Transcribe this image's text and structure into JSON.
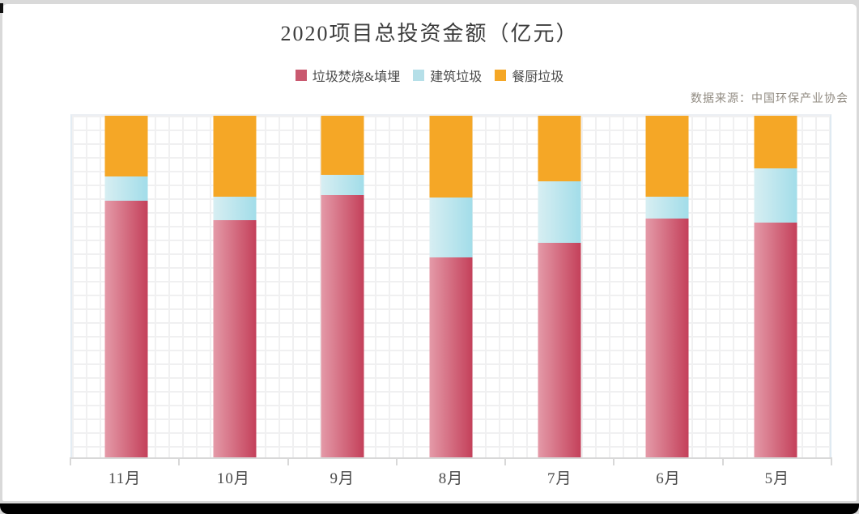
{
  "frame": {
    "border_color": "#d9d9d9",
    "bottom_bar_color": "#000000"
  },
  "chart_data": {
    "type": "bar",
    "stacked": true,
    "title": "2020项目总投资金额（亿元）",
    "source_note": "数据来源：中国环保产业协会",
    "xlabel": "",
    "ylabel": "",
    "y_axis_visible": false,
    "grid": "fine background grid, on",
    "legend_position": "top-center",
    "value_unit": "percent_of_column_height",
    "categories": [
      "11月",
      "10月",
      "9月",
      "8月",
      "7月",
      "6月",
      "5月"
    ],
    "series": [
      {
        "name": "垃圾焚烧&填埋",
        "legend_color": "#c9596f",
        "color_start": "#e49aa8",
        "color_end": "#c4405a",
        "values_pct": [
          75.1,
          69.4,
          76.7,
          58.5,
          62.7,
          69.9,
          68.7
        ]
      },
      {
        "name": "建筑垃圾",
        "legend_color": "#b5dfe8",
        "color_start": "#d7eef2",
        "color_end": "#a2dde9",
        "values_pct": [
          7.2,
          6.9,
          5.9,
          17.5,
          18.1,
          6.4,
          16.0
        ]
      },
      {
        "name": "餐厨垃圾",
        "legend_color": "#f5a726",
        "color_start": "#f5a726",
        "color_end": "#f5a726",
        "values_pct": [
          17.7,
          23.7,
          17.4,
          23.9,
          19.2,
          23.7,
          15.3
        ]
      }
    ]
  }
}
